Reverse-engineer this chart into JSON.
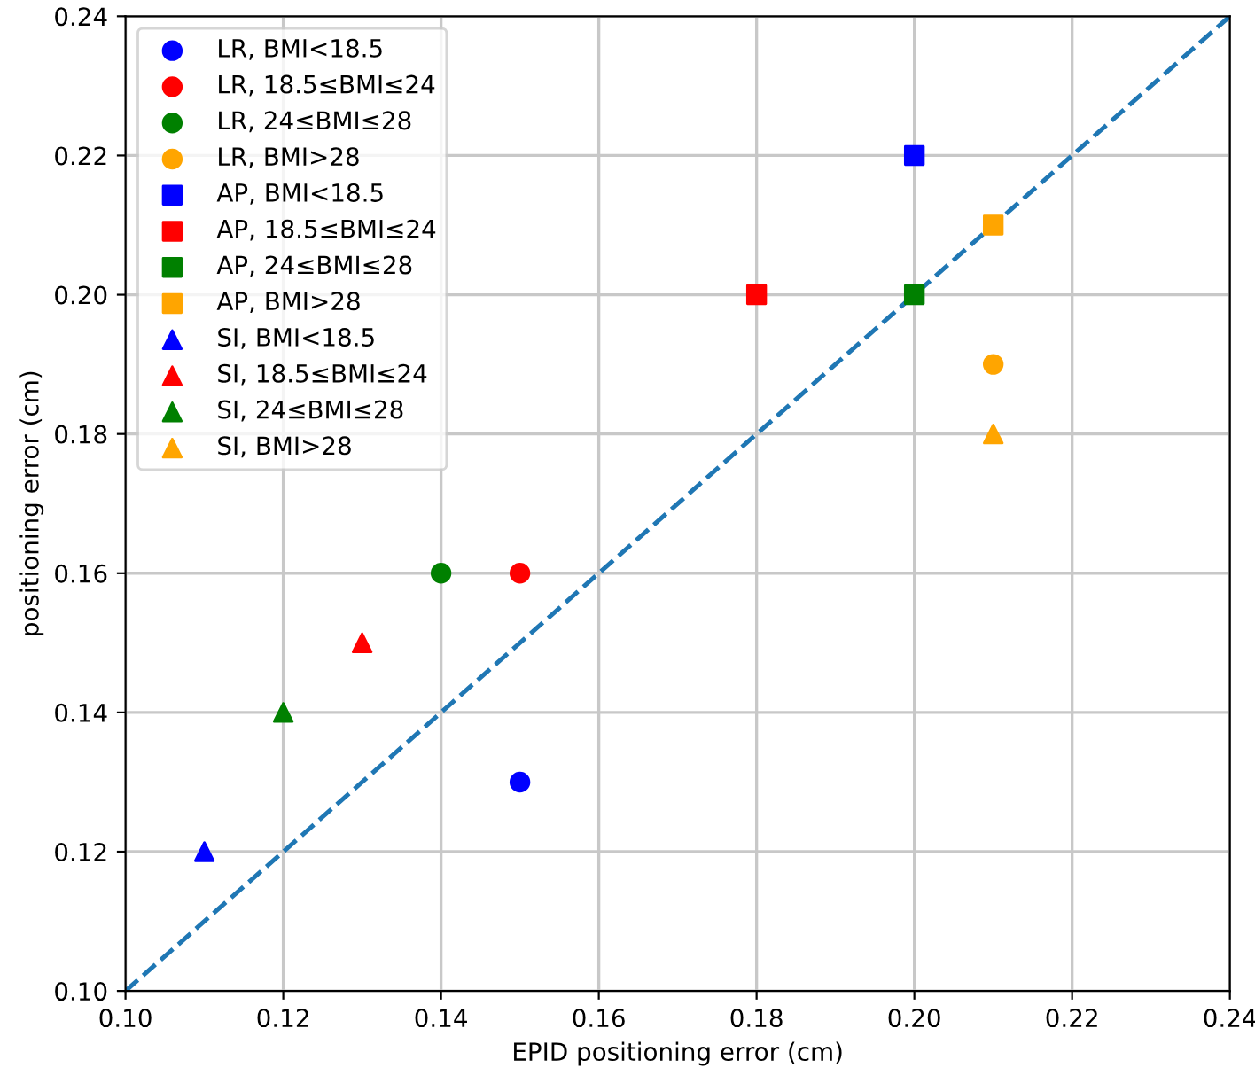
{
  "chart_data": {
    "type": "scatter",
    "xlabel": "EPID positioning error (cm)",
    "ylabel": "positioning error (cm)",
    "xlim": [
      0.1,
      0.24
    ],
    "ylim": [
      0.1,
      0.24
    ],
    "xticks": [
      {
        "value": 0.1,
        "label": "0.10"
      },
      {
        "value": 0.12,
        "label": "0.12"
      },
      {
        "value": 0.14,
        "label": "0.14"
      },
      {
        "value": 0.16,
        "label": "0.16"
      },
      {
        "value": 0.18,
        "label": "0.18"
      },
      {
        "value": 0.2,
        "label": "0.20"
      },
      {
        "value": 0.22,
        "label": "0.22"
      },
      {
        "value": 0.24,
        "label": "0.24"
      }
    ],
    "yticks": [
      {
        "value": 0.1,
        "label": "0.10"
      },
      {
        "value": 0.12,
        "label": "0.12"
      },
      {
        "value": 0.14,
        "label": "0.14"
      },
      {
        "value": 0.16,
        "label": "0.16"
      },
      {
        "value": 0.18,
        "label": "0.18"
      },
      {
        "value": 0.2,
        "label": "0.20"
      },
      {
        "value": 0.22,
        "label": "0.22"
      },
      {
        "value": 0.24,
        "label": "0.24"
      }
    ],
    "grid": true,
    "legend": "top left",
    "series": [
      {
        "type": "line",
        "color": "#1f77b4",
        "line_style": "dashed",
        "marker": "none",
        "x": [
          0.1,
          0.24
        ],
        "values": [
          0.1,
          0.24
        ]
      },
      {
        "name": "LR, BMI<18.5",
        "color": "#0000ff",
        "marker": "circle",
        "x": [
          0.15
        ],
        "values": [
          0.13
        ]
      },
      {
        "name": "LR, 18.5≤BMI≤24",
        "color": "#ff0000",
        "marker": "circle",
        "x": [
          0.15
        ],
        "values": [
          0.16
        ]
      },
      {
        "name": "LR, 24≤BMI≤28",
        "color": "#008000",
        "marker": "circle",
        "x": [
          0.14
        ],
        "values": [
          0.16
        ]
      },
      {
        "name": "LR, BMI>28",
        "color": "#ffa500",
        "marker": "circle",
        "x": [
          0.21
        ],
        "values": [
          0.19
        ]
      },
      {
        "name": "AP, BMI<18.5",
        "color": "#0000ff",
        "marker": "square",
        "x": [
          0.2
        ],
        "values": [
          0.22
        ]
      },
      {
        "name": "AP, 18.5≤BMI≤24",
        "color": "#ff0000",
        "marker": "square",
        "x": [
          0.18
        ],
        "values": [
          0.2
        ]
      },
      {
        "name": "AP, 24≤BMI≤28",
        "color": "#008000",
        "marker": "square",
        "x": [
          0.2
        ],
        "values": [
          0.2
        ]
      },
      {
        "name": "AP, BMI>28",
        "color": "#ffa500",
        "marker": "square",
        "x": [
          0.21
        ],
        "values": [
          0.21
        ]
      },
      {
        "name": "SI, BMI<18.5",
        "color": "#0000ff",
        "marker": "triangle",
        "x": [
          0.11
        ],
        "values": [
          0.12
        ]
      },
      {
        "name": "SI, 18.5≤BMI≤24",
        "color": "#ff0000",
        "marker": "triangle",
        "x": [
          0.13
        ],
        "values": [
          0.15
        ]
      },
      {
        "name": "SI, 24≤BMI≤28",
        "color": "#008000",
        "marker": "triangle",
        "x": [
          0.12
        ],
        "values": [
          0.14
        ]
      },
      {
        "name": "SI, BMI>28",
        "color": "#ffa500",
        "marker": "triangle",
        "x": [
          0.21
        ],
        "values": [
          0.18
        ]
      }
    ]
  }
}
